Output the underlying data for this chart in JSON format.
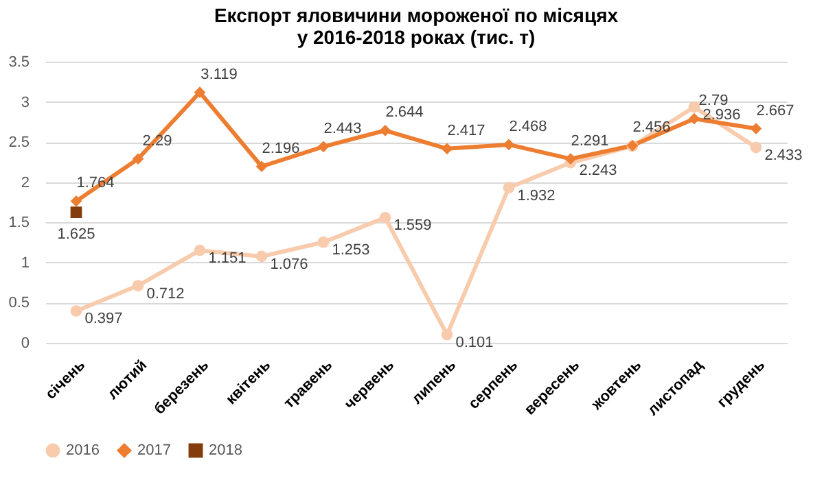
{
  "chart_data": {
    "type": "line",
    "title": "Експорт яловичини мороженої по місяцях\nу 2016-2018 роках (тис. т)",
    "categories": [
      "січень",
      "лютий",
      "березень",
      "квітень",
      "травень",
      "червень",
      "липень",
      "серпень",
      "вересень",
      "жовтень",
      "листопад",
      "грудень"
    ],
    "series": [
      {
        "name": "2016",
        "color": "#f8cbad",
        "marker": "circle",
        "values": [
          0.397,
          0.712,
          1.151,
          1.076,
          1.253,
          1.559,
          0.101,
          1.932,
          2.243,
          2.45,
          2.936,
          2.433
        ],
        "value_labels": [
          "0.397",
          "0.712",
          "1.151",
          "1.076",
          "1.253",
          "1.559",
          "0.101",
          "1.932",
          "2.243",
          null,
          "2.936",
          "2.433"
        ]
      },
      {
        "name": "2017",
        "color": "#ed7d31",
        "marker": "diamond",
        "values": [
          1.764,
          2.29,
          3.119,
          2.196,
          2.443,
          2.644,
          2.417,
          2.468,
          2.291,
          2.456,
          2.79,
          2.667
        ],
        "value_labels": [
          "1.764",
          "2.29",
          "3.119",
          "2.196",
          "2.443",
          "2.644",
          "2.417",
          "2.468",
          "2.291",
          "2.456",
          "2.79",
          "2.667"
        ]
      },
      {
        "name": "2018",
        "color": "#843c0c",
        "marker": "square",
        "values": [
          1.625,
          null,
          null,
          null,
          null,
          null,
          null,
          null,
          null,
          null,
          null,
          null
        ],
        "value_labels": [
          "1.625",
          null,
          null,
          null,
          null,
          null,
          null,
          null,
          null,
          null,
          null,
          null
        ]
      }
    ],
    "ylim": [
      0,
      3.5
    ],
    "yticks": [
      0,
      0.5,
      1,
      1.5,
      2,
      2.5,
      3,
      3.5
    ],
    "grid": "y",
    "legend": "bottom"
  }
}
